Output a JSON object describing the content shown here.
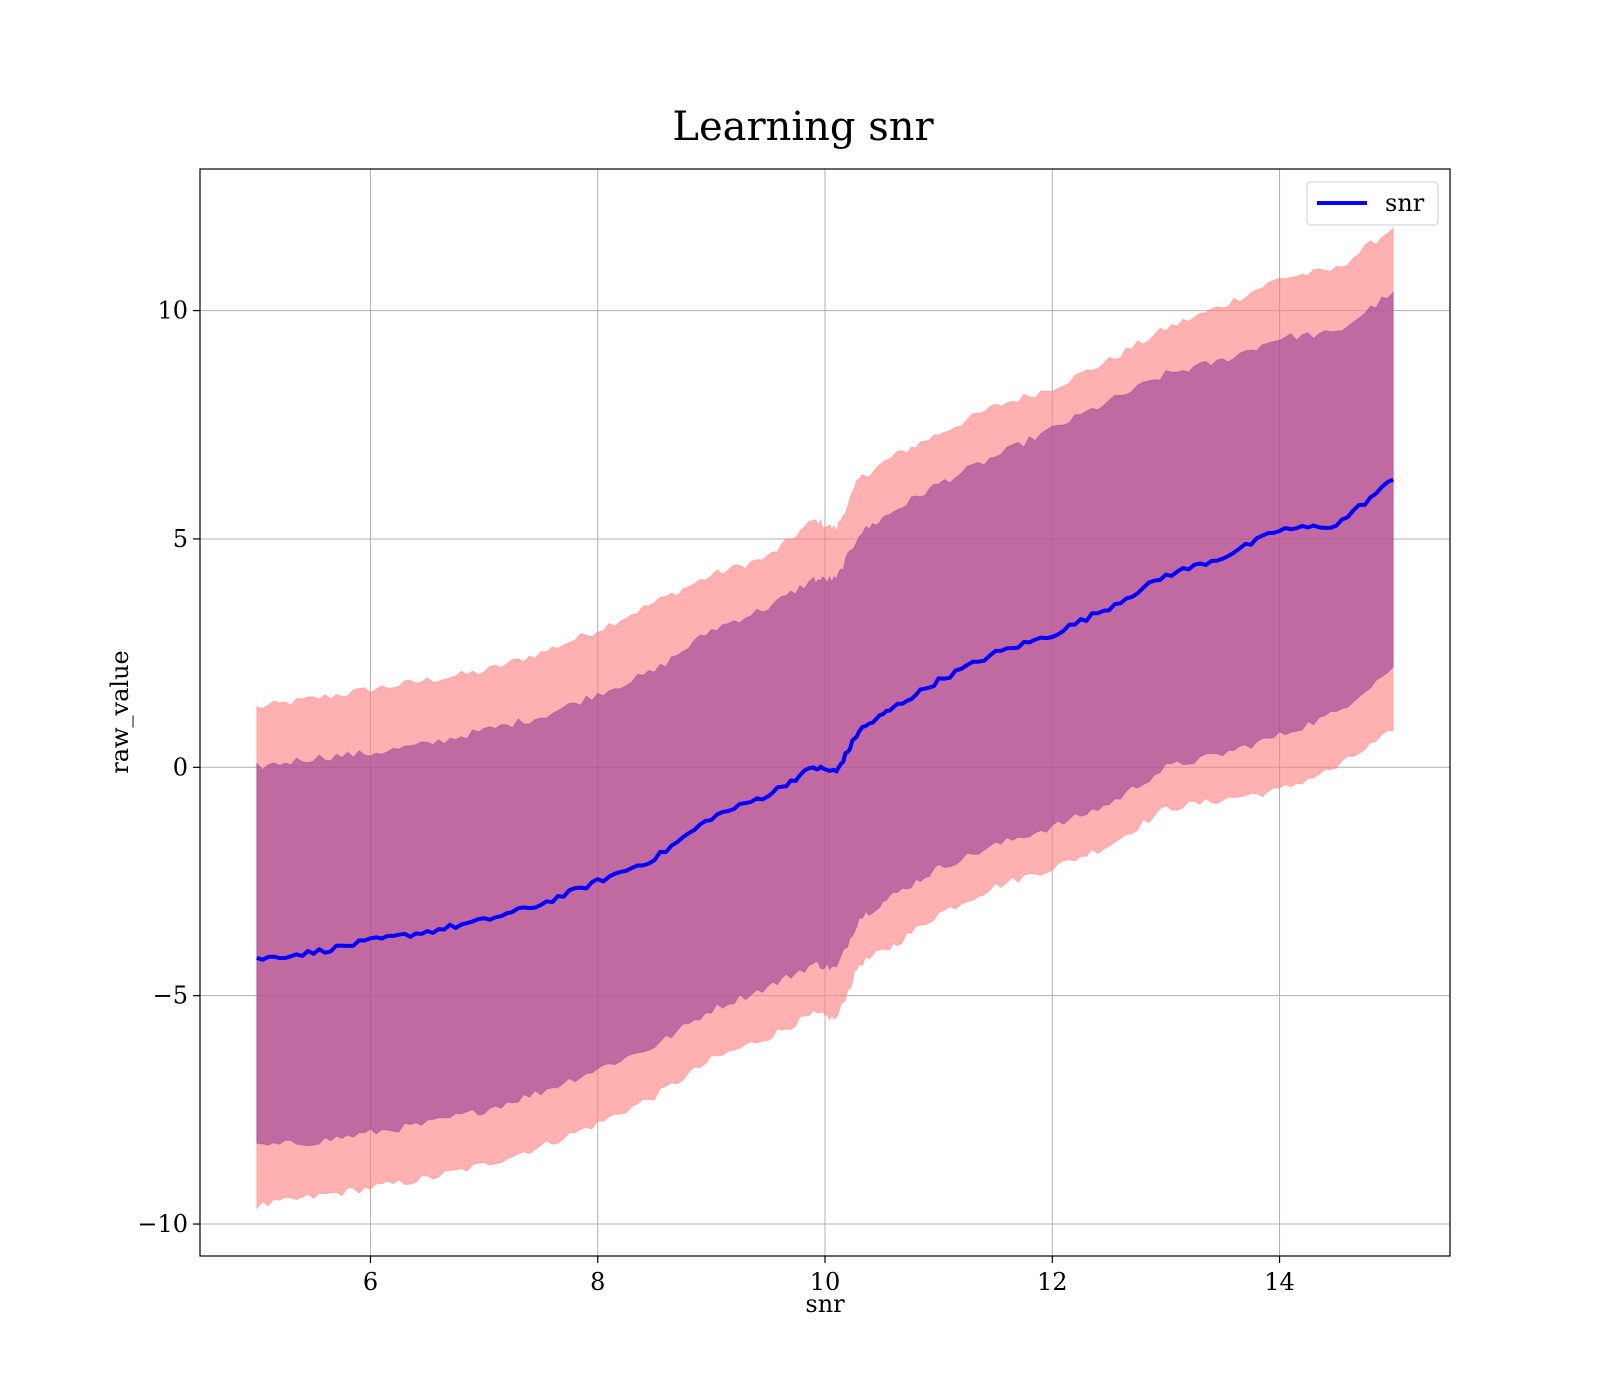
{
  "chart_data": {
    "type": "line",
    "title": "Learning snr",
    "xlabel": "snr",
    "ylabel": "raw_value",
    "xlim": [
      4.5,
      15.5
    ],
    "ylim": [
      -10.7,
      13.1
    ],
    "xticks": [
      6,
      8,
      10,
      12,
      14
    ],
    "yticks": [
      -10,
      -5,
      0,
      5,
      10
    ],
    "xtick_labels": [
      "6",
      "8",
      "10",
      "12",
      "14"
    ],
    "ytick_labels": [
      "−10",
      "−5",
      "0",
      "5",
      "10"
    ],
    "grid": true,
    "legend": {
      "placement": "top-right",
      "entries": [
        "snr"
      ]
    },
    "colors": {
      "line": "#0000ff",
      "band_outer": "#ff7f7f",
      "band_inner": "#9b3f9a",
      "grid": "#b0b0b0"
    },
    "series": [
      {
        "name": "snr",
        "style": "line",
        "x": [
          5.0,
          5.5,
          6.0,
          6.5,
          7.0,
          7.5,
          8.0,
          8.5,
          9.0,
          9.5,
          9.9,
          10.1,
          10.3,
          10.6,
          11.0,
          11.5,
          12.0,
          12.5,
          13.0,
          13.5,
          14.0,
          14.5,
          15.0
        ],
        "y": [
          -4.2,
          -4.05,
          -3.8,
          -3.6,
          -3.35,
          -3.0,
          -2.5,
          -2.0,
          -1.1,
          -0.6,
          0.0,
          -0.1,
          0.8,
          1.3,
          1.9,
          2.5,
          2.9,
          3.5,
          4.2,
          4.6,
          5.2,
          5.3,
          6.3
        ]
      },
      {
        "name": "",
        "style": "band",
        "x": [
          5.0,
          5.5,
          6.0,
          6.5,
          7.0,
          7.5,
          8.0,
          8.5,
          9.0,
          9.5,
          9.9,
          10.1,
          10.3,
          10.6,
          11.0,
          11.5,
          12.0,
          12.5,
          13.0,
          13.5,
          14.0,
          14.5,
          15.0
        ],
        "lower": [
          -9.6,
          -9.4,
          -9.2,
          -9.0,
          -8.7,
          -8.3,
          -7.8,
          -7.2,
          -6.4,
          -5.9,
          -5.4,
          -5.5,
          -4.3,
          -3.9,
          -3.2,
          -2.6,
          -2.2,
          -1.7,
          -0.9,
          -0.7,
          -0.5,
          0.0,
          0.8
        ],
        "upper": [
          1.3,
          1.5,
          1.7,
          1.9,
          2.1,
          2.5,
          3.0,
          3.6,
          4.2,
          4.6,
          5.4,
          5.2,
          6.3,
          6.8,
          7.3,
          7.9,
          8.3,
          8.9,
          9.6,
          10.1,
          10.7,
          10.9,
          11.8
        ]
      },
      {
        "name": "",
        "style": "band",
        "x": [
          5.0,
          5.5,
          6.0,
          6.5,
          7.0,
          7.5,
          8.0,
          8.5,
          9.0,
          9.5,
          9.9,
          10.1,
          10.3,
          10.6,
          11.0,
          11.5,
          12.0,
          12.5,
          13.0,
          13.5,
          14.0,
          14.5,
          15.0
        ],
        "lower": [
          -8.3,
          -8.2,
          -8.0,
          -7.8,
          -7.5,
          -7.1,
          -6.6,
          -6.1,
          -5.3,
          -4.8,
          -4.3,
          -4.4,
          -3.3,
          -2.8,
          -2.2,
          -1.7,
          -1.3,
          -0.8,
          0.0,
          0.3,
          0.7,
          1.2,
          2.2
        ],
        "upper": [
          0.0,
          0.2,
          0.3,
          0.5,
          0.8,
          1.1,
          1.6,
          2.1,
          3.0,
          3.5,
          4.1,
          4.1,
          5.1,
          5.6,
          6.2,
          6.8,
          7.4,
          8.0,
          8.6,
          8.9,
          9.4,
          9.5,
          10.4
        ]
      }
    ]
  }
}
